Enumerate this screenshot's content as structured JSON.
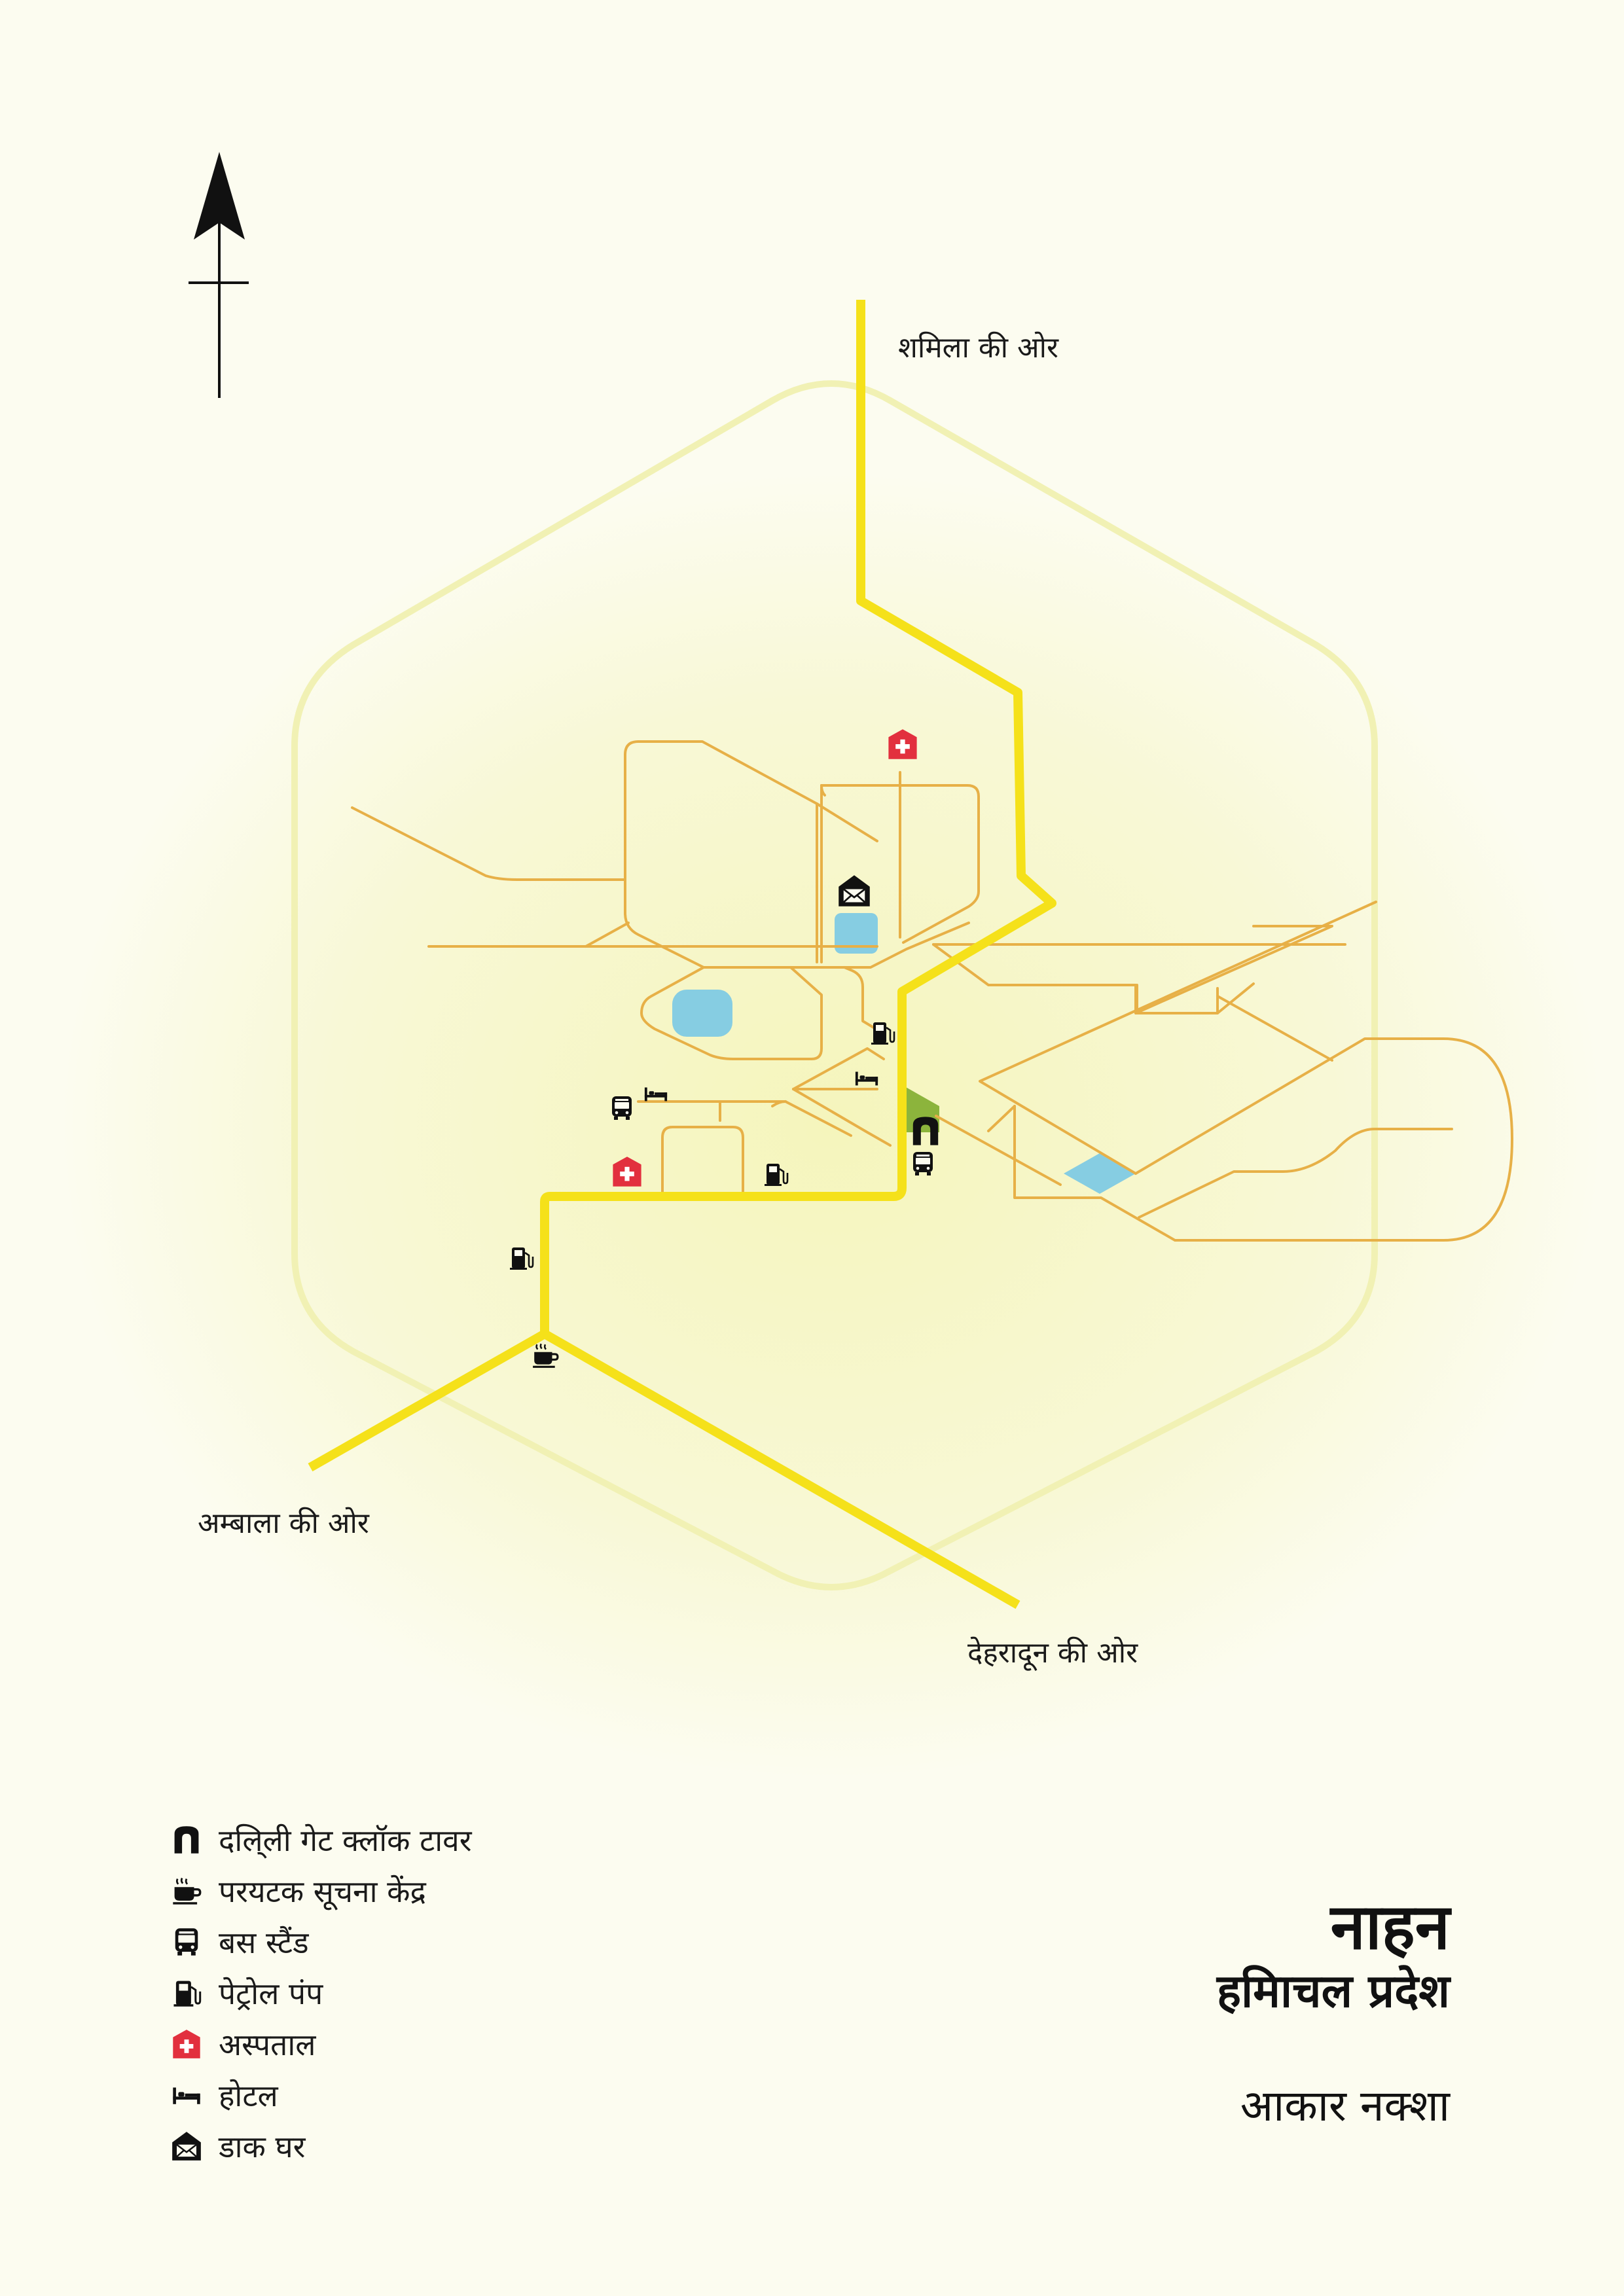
{
  "map": {
    "directions": {
      "north": "शमिला की ओर",
      "southwest": "अम्बाला की ओर",
      "southeast": "देहरादून की ओर"
    },
    "colors": {
      "background": "#fcfcf0",
      "highway": "#f5e11a",
      "street": "#e7b047",
      "boundary": "#f1f1b4",
      "water": "#86cde2",
      "park": "#8cb43c",
      "hospital": "#e2303e",
      "icon": "#111111"
    },
    "features": [
      {
        "type": "hospital",
        "icon": "hospital-icon"
      },
      {
        "type": "hospital",
        "icon": "hospital-icon"
      },
      {
        "type": "post-office",
        "icon": "post-office-icon"
      },
      {
        "type": "petrol-pump",
        "icon": "fuel-icon"
      },
      {
        "type": "petrol-pump",
        "icon": "fuel-icon"
      },
      {
        "type": "petrol-pump",
        "icon": "fuel-icon"
      },
      {
        "type": "hotel",
        "icon": "bed-icon"
      },
      {
        "type": "hotel",
        "icon": "bed-icon"
      },
      {
        "type": "bus-stand",
        "icon": "bus-icon"
      },
      {
        "type": "bus-stand",
        "icon": "bus-icon"
      },
      {
        "type": "clock-tower",
        "icon": "clock-tower-icon"
      },
      {
        "type": "tourist-info",
        "icon": "coffee-cup-icon"
      }
    ]
  },
  "legend": [
    {
      "icon": "clock-tower-icon",
      "label": "दलि्ली गेट क्लॉक टावर"
    },
    {
      "icon": "coffee-cup-icon",
      "label": "परयटक सूचना केंद्र"
    },
    {
      "icon": "bus-icon",
      "label": "बस स्टैंड"
    },
    {
      "icon": "fuel-icon",
      "label": "पेट्रोल पंप"
    },
    {
      "icon": "hospital-icon",
      "label": "अस्पताल"
    },
    {
      "icon": "bed-icon",
      "label": "होटल"
    },
    {
      "icon": "post-office-icon",
      "label": "डाक घर"
    }
  ],
  "title": {
    "city": "नाहन",
    "state": "हमिाचल प्रदेश",
    "subtitle": "आकार नक्शा"
  }
}
